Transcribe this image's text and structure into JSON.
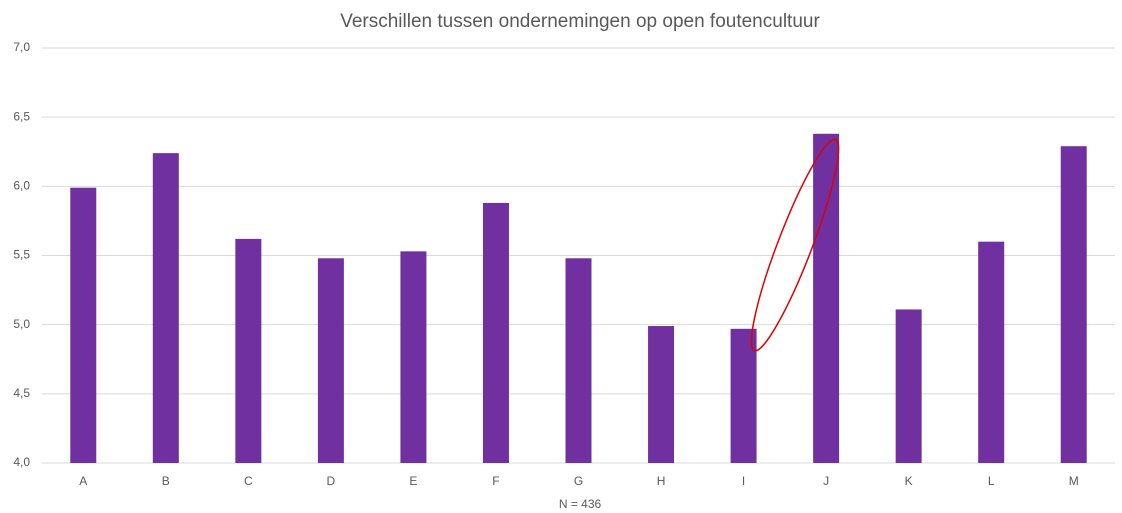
{
  "chart_data": {
    "type": "bar",
    "title": "Verschillen tussen ondernemingen op open foutencultuur",
    "x_label": "N = 436",
    "categories": [
      "A",
      "B",
      "C",
      "D",
      "E",
      "F",
      "G",
      "H",
      "I",
      "J",
      "K",
      "L",
      "M"
    ],
    "values": [
      5.99,
      6.24,
      5.62,
      5.48,
      5.53,
      5.88,
      5.48,
      4.99,
      4.97,
      6.38,
      5.11,
      5.6,
      6.29
    ],
    "color": "#7030a0",
    "ylim": [
      4,
      7
    ],
    "yticks": [
      {
        "value": 4,
        "label": "4,0"
      },
      {
        "value": 4.5,
        "label": "4,5"
      },
      {
        "value": 5,
        "label": "5,0"
      },
      {
        "value": 5.5,
        "label": "5,5"
      },
      {
        "value": 6,
        "label": "6,0"
      },
      {
        "value": 6.5,
        "label": "6,5"
      },
      {
        "value": 7,
        "label": "7,0"
      }
    ],
    "grid": true
  }
}
